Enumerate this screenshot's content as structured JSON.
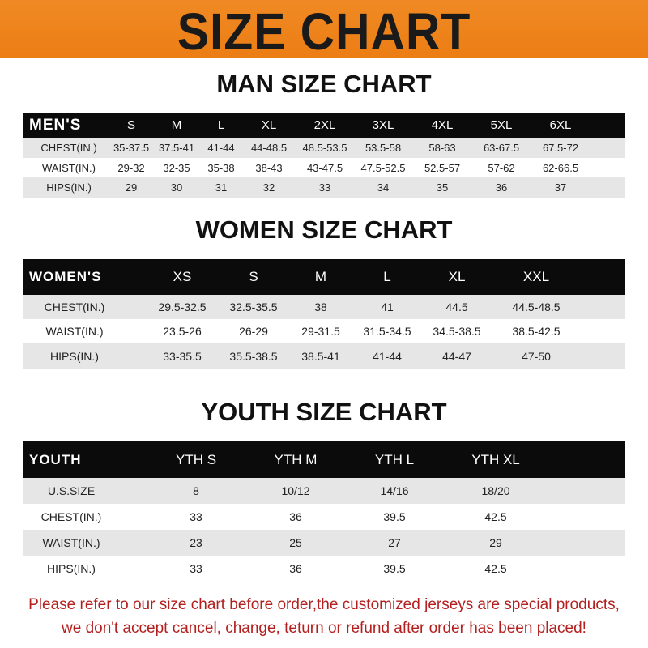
{
  "banner_title": "SIZE CHART",
  "men": {
    "title": "MAN SIZE CHART",
    "header": "MEN'S",
    "sizes": [
      "S",
      "M",
      "L",
      "XL",
      "2XL",
      "3XL",
      "4XL",
      "5XL",
      "6XL"
    ],
    "rows": [
      {
        "label": "CHEST(IN.)",
        "values": [
          "35-37.5",
          "37.5-41",
          "41-44",
          "44-48.5",
          "48.5-53.5",
          "53.5-58",
          "58-63",
          "63-67.5",
          "67.5-72"
        ]
      },
      {
        "label": "WAIST(IN.)",
        "values": [
          "29-32",
          "32-35",
          "35-38",
          "38-43",
          "43-47.5",
          "47.5-52.5",
          "52.5-57",
          "57-62",
          "62-66.5"
        ]
      },
      {
        "label": "HIPS(IN.)",
        "values": [
          "29",
          "30",
          "31",
          "32",
          "33",
          "34",
          "35",
          "36",
          "37"
        ]
      }
    ]
  },
  "women": {
    "title": "WOMEN SIZE CHART",
    "header": "WOMEN'S",
    "sizes": [
      "XS",
      "S",
      "M",
      "L",
      "XL",
      "XXL"
    ],
    "rows": [
      {
        "label": "CHEST(IN.)",
        "values": [
          "29.5-32.5",
          "32.5-35.5",
          "38",
          "41",
          "44.5",
          "44.5-48.5"
        ]
      },
      {
        "label": "WAIST(IN.)",
        "values": [
          "23.5-26",
          "26-29",
          "29-31.5",
          "31.5-34.5",
          "34.5-38.5",
          "38.5-42.5"
        ]
      },
      {
        "label": "HIPS(IN.)",
        "values": [
          "33-35.5",
          "35.5-38.5",
          "38.5-41",
          "41-44",
          "44-47",
          "47-50"
        ]
      }
    ]
  },
  "youth": {
    "title": "YOUTH SIZE CHART",
    "header": "YOUTH",
    "sizes": [
      "YTH S",
      "YTH M",
      "YTH L",
      "YTH XL"
    ],
    "rows": [
      {
        "label": "U.S.SIZE",
        "values": [
          "8",
          "10/12",
          "14/16",
          "18/20"
        ]
      },
      {
        "label": "CHEST(IN.)",
        "values": [
          "33",
          "36",
          "39.5",
          "42.5"
        ]
      },
      {
        "label": "WAIST(IN.)",
        "values": [
          "23",
          "25",
          "27",
          "29"
        ]
      },
      {
        "label": "HIPS(IN.)",
        "values": [
          "33",
          "36",
          "39.5",
          "42.5"
        ]
      }
    ]
  },
  "note": {
    "line1": "Please refer to our size chart before order,the customized jerseys are special products,",
    "line2": "we don't accept cancel, change, teturn or refund after order has been placed!"
  }
}
